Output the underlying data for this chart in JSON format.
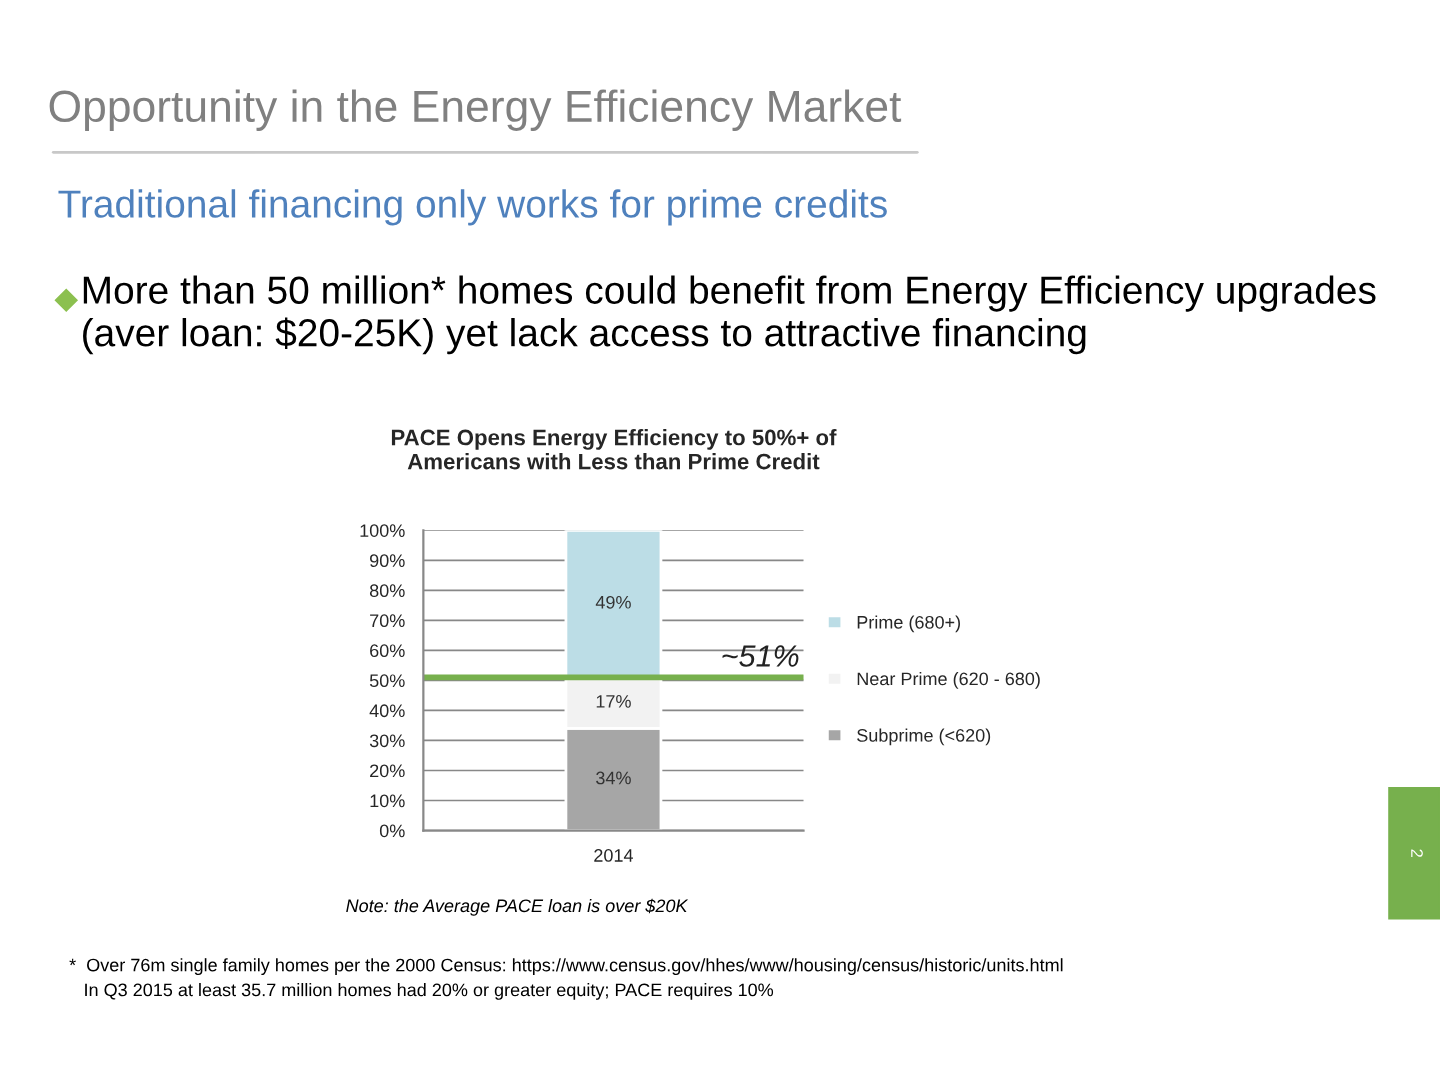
{
  "chart_data": {
    "type": "bar",
    "title": "PACE Opens Energy Efficiency to 50%+ of\nAmericans with Less than Prime Credit",
    "categories": [
      "2014"
    ],
    "stacked": true,
    "series": [
      {
        "name": "Subprime (<620)",
        "color": "#a6a6a6",
        "values": [
          34
        ],
        "value_labels": [
          "34%"
        ]
      },
      {
        "name": "Near Prime (620 - 680)",
        "color": "#f2f2f2",
        "values": [
          17
        ],
        "value_labels": [
          "17%"
        ]
      },
      {
        "name": "Prime (680+)",
        "color": "#bcdde6",
        "values": [
          49
        ],
        "value_labels": [
          "49%"
        ]
      }
    ],
    "ylim": [
      0,
      100
    ],
    "yticks": [
      {
        "value": 0,
        "label": "0%"
      },
      {
        "value": 10,
        "label": "10%"
      },
      {
        "value": 20,
        "label": "20%"
      },
      {
        "value": 30,
        "label": "30%"
      },
      {
        "value": 40,
        "label": "40%"
      },
      {
        "value": 50,
        "label": "50%"
      },
      {
        "value": 60,
        "label": "60%"
      },
      {
        "value": 70,
        "label": "70%"
      },
      {
        "value": 80,
        "label": "80%"
      },
      {
        "value": 90,
        "label": "90%"
      },
      {
        "value": 100,
        "label": "100%"
      }
    ],
    "grid": "y",
    "legend": "right",
    "ref_lines": [
      {
        "axis": "y",
        "value": 51,
        "label": "~51%",
        "color": "#77b04d"
      }
    ],
    "annotations": [
      "Opportunity in the Energy Efficiency Market",
      "Traditional financing only works for prime credits",
      "More than 50 million* homes could benefit from Energy Efficiency upgrades (aver loan: $20-25K) yet lack access to attractive financing",
      "Note: the Average PACE loan is over $20K",
      "*  Over 76m single family homes per the 2000 Census: https://www.census.gov/hhes/www/housing/census/historic/units.html",
      "In Q3 2015 at least 35.7 million homes had 20% or greater equity; PACE requires 10%",
      "2"
    ]
  }
}
